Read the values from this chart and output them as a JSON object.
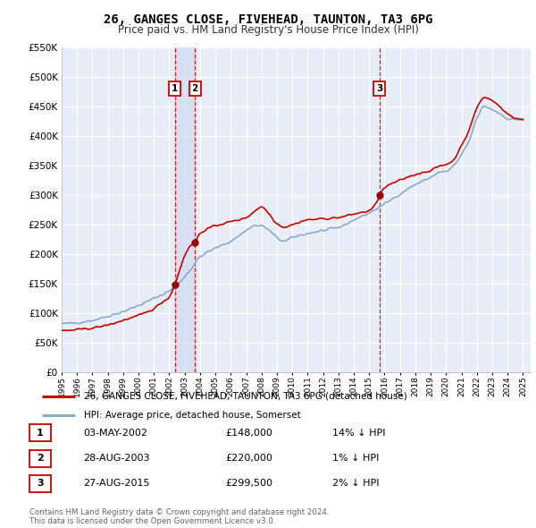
{
  "title": "26, GANGES CLOSE, FIVEHEAD, TAUNTON, TA3 6PG",
  "subtitle": "Price paid vs. HM Land Registry's House Price Index (HPI)",
  "legend_label_red": "26, GANGES CLOSE, FIVEHEAD, TAUNTON, TA3 6PG (detached house)",
  "legend_label_blue": "HPI: Average price, detached house, Somerset",
  "footer": "Contains HM Land Registry data © Crown copyright and database right 2024.\nThis data is licensed under the Open Government Licence v3.0.",
  "transactions": [
    {
      "num": 1,
      "date": "03-MAY-2002",
      "price": 148000,
      "pct": "14%",
      "direction": "↓",
      "year_x": 2002.35
    },
    {
      "num": 2,
      "date": "28-AUG-2003",
      "price": 220000,
      "pct": "1%",
      "direction": "↓",
      "year_x": 2003.66
    },
    {
      "num": 3,
      "date": "27-AUG-2015",
      "price": 299500,
      "pct": "2%",
      "direction": "↓",
      "year_x": 2015.66
    }
  ],
  "ylim": [
    0,
    550000
  ],
  "yticks": [
    0,
    50000,
    100000,
    150000,
    200000,
    250000,
    300000,
    350000,
    400000,
    450000,
    500000,
    550000
  ],
  "xlim": [
    1995.0,
    2025.5
  ],
  "background_color": "#e8eef8",
  "grid_color": "#ffffff",
  "red_line_color": "#cc0000",
  "blue_line_color": "#88aacc",
  "marker_color": "#990000",
  "vline_color": "#dd2222",
  "box_color": "#cc0000",
  "shade_color": "#ccd8ee"
}
